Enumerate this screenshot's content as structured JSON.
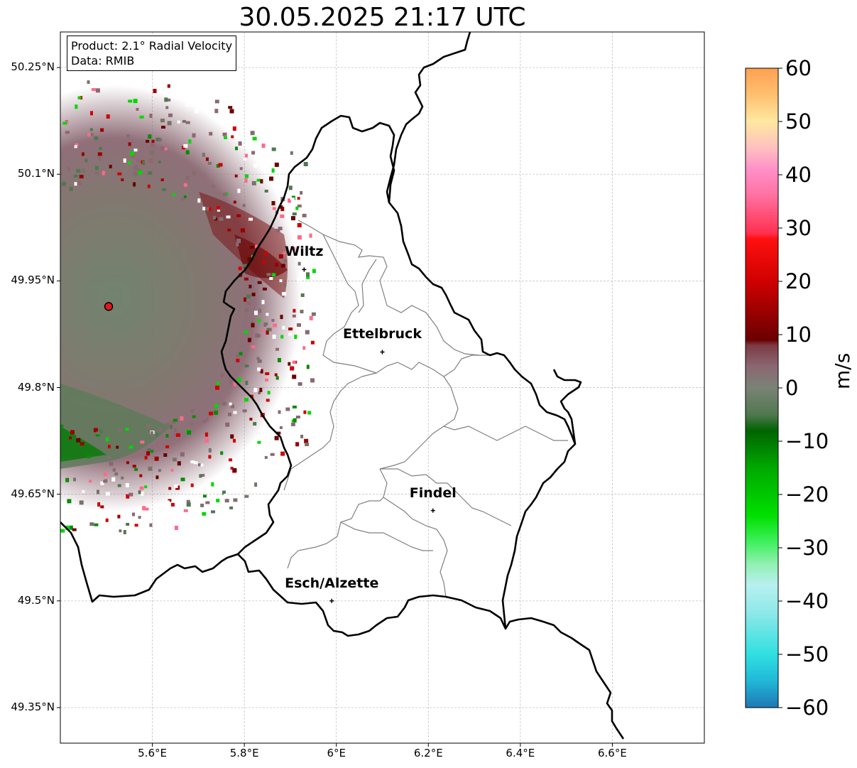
{
  "title": "30.05.2025 21:17 UTC",
  "info_box": {
    "product": "Product: 2.1° Radial Velocity",
    "data": "Data: RMIB"
  },
  "map": {
    "lon_range": [
      5.4,
      6.8
    ],
    "lat_range": [
      49.3,
      50.3
    ],
    "grid": true,
    "lat_ticks": [
      {
        "value": 50.25,
        "label": "50.25°N"
      },
      {
        "value": 50.1,
        "label": "50.1°N"
      },
      {
        "value": 49.95,
        "label": "49.95°N"
      },
      {
        "value": 49.8,
        "label": "49.8°N"
      },
      {
        "value": 49.65,
        "label": "49.65°N"
      },
      {
        "value": 49.5,
        "label": "49.5°N"
      },
      {
        "value": 49.35,
        "label": "49.35°N"
      }
    ],
    "lon_ticks": [
      {
        "value": 5.6,
        "label": "5.6°E"
      },
      {
        "value": 5.8,
        "label": "5.8°E"
      },
      {
        "value": 6.0,
        "label": "6°E"
      },
      {
        "value": 6.2,
        "label": "6.2°E"
      },
      {
        "value": 6.4,
        "label": "6.4°E"
      },
      {
        "value": 6.6,
        "label": "6.6°E"
      }
    ],
    "radar_site": {
      "lon": 5.505,
      "lat": 49.914,
      "color": "#e8141b"
    },
    "cities": [
      {
        "name": "Wiltz",
        "lon": 5.93,
        "lat": 49.966
      },
      {
        "name": "Ettelbruck",
        "lon": 6.1,
        "lat": 49.85
      },
      {
        "name": "Findel",
        "lon": 6.21,
        "lat": 49.627
      },
      {
        "name": "Esch/Alzette",
        "lon": 5.99,
        "lat": 49.5
      }
    ]
  },
  "colorbar": {
    "unit": "m/s",
    "range": [
      -60,
      60
    ],
    "ticks": [
      {
        "value": 60,
        "label": "60"
      },
      {
        "value": 50,
        "label": "50"
      },
      {
        "value": 40,
        "label": "40"
      },
      {
        "value": 30,
        "label": "30"
      },
      {
        "value": 20,
        "label": "20"
      },
      {
        "value": 10,
        "label": "10"
      },
      {
        "value": 0,
        "label": "0"
      },
      {
        "value": -10,
        "label": "−10"
      },
      {
        "value": -20,
        "label": "−20"
      },
      {
        "value": -30,
        "label": "−30"
      },
      {
        "value": -40,
        "label": "−40"
      },
      {
        "value": -50,
        "label": "−50"
      },
      {
        "value": -60,
        "label": "−60"
      }
    ],
    "stops": [
      {
        "value": -60,
        "color": "#1f77b4"
      },
      {
        "value": -55,
        "color": "#20b8d8"
      },
      {
        "value": -50,
        "color": "#30e0e0"
      },
      {
        "value": -42,
        "color": "#90e8e8"
      },
      {
        "value": -37,
        "color": "#b8f0f0"
      },
      {
        "value": -33,
        "color": "#90f0b0"
      },
      {
        "value": -29,
        "color": "#40f060"
      },
      {
        "value": -24,
        "color": "#00e000"
      },
      {
        "value": -15,
        "color": "#00a800"
      },
      {
        "value": -8,
        "color": "#006400"
      },
      {
        "value": -5,
        "color": "#507850"
      },
      {
        "value": 0,
        "color": "#7a8276"
      },
      {
        "value": 4,
        "color": "#8a6872"
      },
      {
        "value": 8,
        "color": "#7c3a44"
      },
      {
        "value": 9,
        "color": "#6a0000"
      },
      {
        "value": 20,
        "color": "#d00000"
      },
      {
        "value": 28,
        "color": "#ff1010"
      },
      {
        "value": 29,
        "color": "#ff3050"
      },
      {
        "value": 36,
        "color": "#ff70a0"
      },
      {
        "value": 41,
        "color": "#ff90c8"
      },
      {
        "value": 45,
        "color": "#ffc0c0"
      },
      {
        "value": 50,
        "color": "#ffe8a0"
      },
      {
        "value": 55,
        "color": "#ffc070"
      },
      {
        "value": 60,
        "color": "#ffa050"
      }
    ]
  },
  "colors": {
    "border_country": "#000000",
    "border_canton": "#808080",
    "grid": "#bbbbbb"
  }
}
